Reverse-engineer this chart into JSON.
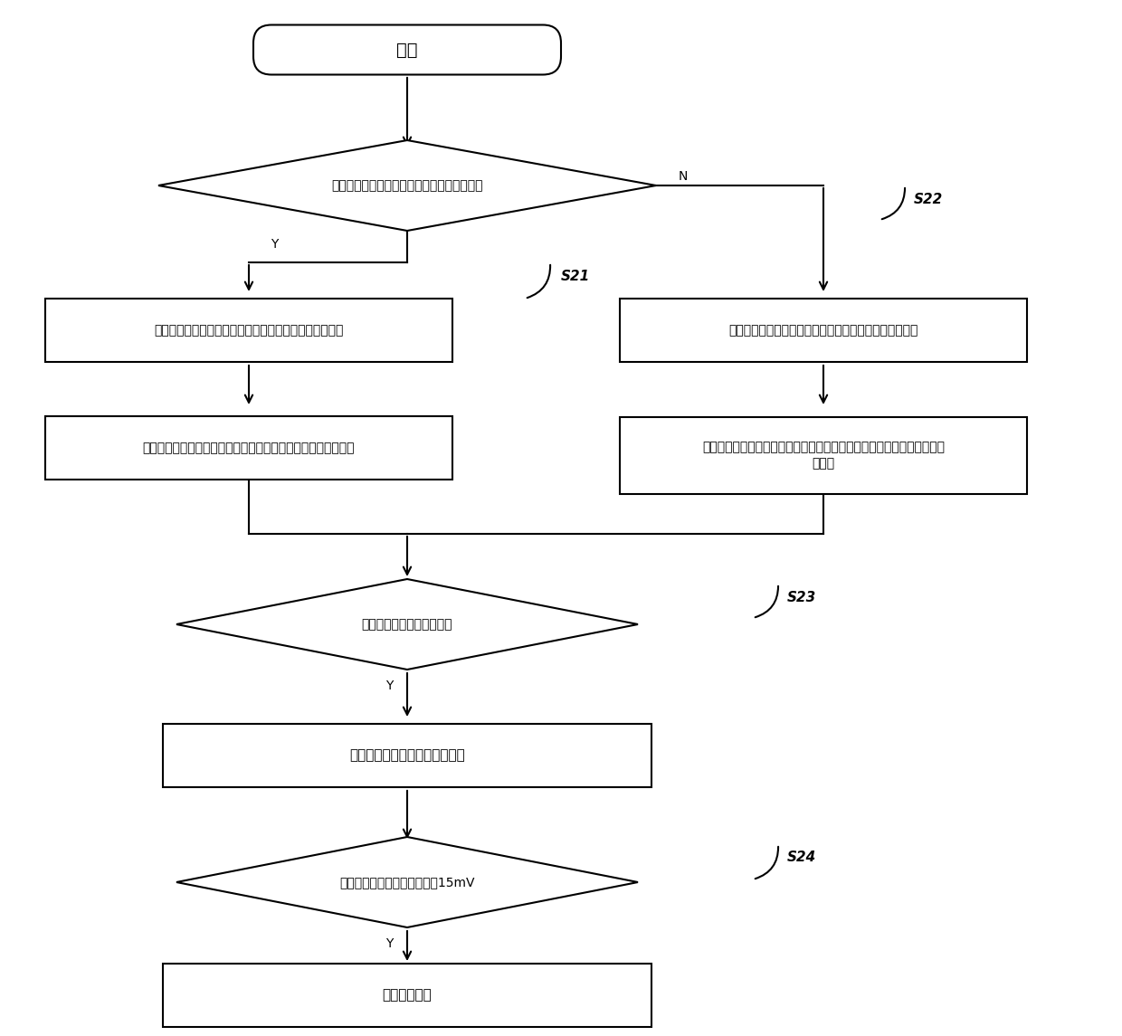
{
  "bg_color": "#ffffff",
  "nodes": {
    "start_text": "开始",
    "d1_text": "均衡信息计算功能使能标志位是否为置位状态",
    "bl1_text": "更新的计算的均衡时间矩阵为以上的计算的均衡时间矩阵",
    "br1_text": "更新的计算的均衡时间矩阵为下一步计算的均衡时间矩阵",
    "bl2_text": "选出需要更新的电芯序号为电压等于最高电压的那颗电池的序号",
    "br2_text": "选出需要更新的电芯序号为上电初始电芯或者上次在开启均衡的那颗电池\n的序号",
    "d2_text": "当前是否处于均衡开启状态",
    "bm_text": "均衡剩余时间减去一个调用周期",
    "d3_text": "最大最小电压的压差是否小于15mV",
    "be_text": "均衡时间清零"
  },
  "fontsize_main": 11,
  "fontsize_label": 10,
  "fontsize_yn": 10,
  "fontsize_s": 11
}
